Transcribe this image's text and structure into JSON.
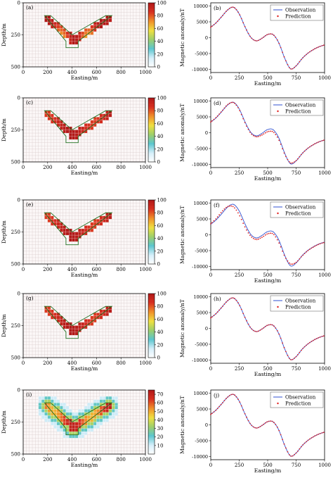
{
  "figure": {
    "rows": [
      {
        "left": {
          "label": "(a)",
          "xlabel": "Easting/m",
          "ylabel": "Depth/m",
          "xticks": [
            "0",
            "200",
            "400",
            "600",
            "800",
            "1000"
          ],
          "yticks": [
            "0",
            "250",
            "500"
          ],
          "colorbar_ticks": [
            "0",
            "20",
            "40",
            "60",
            "80",
            "100"
          ],
          "cmax": 100
        },
        "right": {
          "label": "(b)",
          "xlabel": "Easting/m",
          "ylabel": "Magnetic anomaly/nT",
          "xticks": [
            "0",
            "250",
            "500",
            "750",
            "1000"
          ],
          "yticks": [
            "-10000",
            "-5000",
            "0",
            "5000",
            "10000"
          ],
          "legend": [
            "Observation",
            "Prediction"
          ]
        }
      },
      {
        "left": {
          "label": "(c)",
          "xlabel": "Easting/m",
          "ylabel": "Depth/m",
          "xticks": [
            "0",
            "200",
            "400",
            "600",
            "800",
            "1000"
          ],
          "yticks": [
            "0",
            "250",
            "500"
          ],
          "colorbar_ticks": [
            "0",
            "20",
            "40",
            "60",
            "80",
            "100"
          ],
          "cmax": 100
        },
        "right": {
          "label": "(d)",
          "xlabel": "Easting/m",
          "ylabel": "Magnetic anomaly/nT",
          "xticks": [
            "0",
            "250",
            "500",
            "750",
            "1000"
          ],
          "yticks": [
            "-10000",
            "-5000",
            "0",
            "5000",
            "10000"
          ],
          "legend": [
            "Observation",
            "Prediction"
          ]
        }
      },
      {
        "left": {
          "label": "(e)",
          "xlabel": "Easting/m",
          "ylabel": "Depth/m",
          "xticks": [
            "0",
            "200",
            "400",
            "600",
            "800",
            "1000"
          ],
          "yticks": [
            "0",
            "250",
            "500"
          ],
          "colorbar_ticks": [
            "0",
            "20",
            "40",
            "60",
            "80",
            "100"
          ],
          "cmax": 100
        },
        "right": {
          "label": "(f)",
          "xlabel": "Easting/m",
          "ylabel": "Magnetic anomaly/nT",
          "xticks": [
            "0",
            "250",
            "500",
            "750",
            "1000"
          ],
          "yticks": [
            "-10000",
            "-5000",
            "0",
            "5000",
            "10000"
          ],
          "legend": [
            "Observation",
            "Prediction"
          ]
        }
      },
      {
        "left": {
          "label": "(g)",
          "xlabel": "Easting/m",
          "ylabel": "Depth/m",
          "xticks": [
            "0",
            "200",
            "400",
            "600",
            "800",
            "1000"
          ],
          "yticks": [
            "0",
            "250",
            "500"
          ],
          "colorbar_ticks": [
            "0",
            "20",
            "40",
            "60",
            "80",
            "100"
          ],
          "cmax": 100
        },
        "right": {
          "label": "(h)",
          "xlabel": "Easting/m",
          "ylabel": "Magnetic anomaly/nT",
          "xticks": [
            "0",
            "250",
            "500",
            "750",
            "1000"
          ],
          "yticks": [
            "-10000",
            "-5000",
            "0",
            "5000",
            "10000"
          ],
          "legend": [
            "Observation",
            "Prediction"
          ]
        }
      },
      {
        "left": {
          "label": "(i)",
          "xlabel": "Easting/m",
          "ylabel": "Depth/m",
          "xticks": [
            "0",
            "200",
            "400",
            "600",
            "800",
            "1000"
          ],
          "yticks": [
            "0",
            "250",
            "500"
          ],
          "colorbar_ticks": [
            "10",
            "20",
            "30",
            "40",
            "50",
            "60",
            "70"
          ],
          "cmax": 75
        },
        "right": {
          "label": "(j)",
          "xlabel": "Easting/m",
          "ylabel": "Magnetic anomaly/nT",
          "xticks": [
            "0",
            "250",
            "500",
            "750",
            "1000"
          ],
          "yticks": [
            "-10000",
            "-5000",
            "0",
            "5000",
            "10000"
          ],
          "legend": [
            "Observation",
            "Prediction"
          ]
        }
      }
    ]
  },
  "chart_data": [
    {
      "type": "heatmap",
      "panel": "(a)",
      "xlabel": "Easting/m",
      "ylabel": "Depth/m",
      "xlim": [
        0,
        1000
      ],
      "ylim": [
        500,
        0
      ],
      "clim": [
        0,
        100
      ],
      "cell_size": 25,
      "true_model": "V-shaped dipping dyke: left limb from (175,100) to (400,275), right limb from (700,100) to (400,275), tail block near (400,350)",
      "recovered_model": "V-shaped band of high susceptibility (≈80-100) following the true model; lower values near the apex"
    },
    {
      "type": "line",
      "panel": "(b)",
      "xlabel": "Easting/m",
      "ylabel": "Magnetic anomaly/nT",
      "xlim": [
        0,
        1000
      ],
      "ylim": [
        -11000,
        11000
      ],
      "x": [
        0,
        50,
        100,
        150,
        200,
        250,
        300,
        350,
        400,
        450,
        500,
        550,
        600,
        650,
        700,
        750,
        800,
        850,
        900,
        950,
        1000
      ],
      "series": [
        {
          "name": "Observation",
          "values": [
            3300,
            4800,
            6800,
            8800,
            9600,
            7500,
            3500,
            200,
            -1000,
            -200,
            1000,
            900,
            -1800,
            -6500,
            -9800,
            -8900,
            -6700,
            -5000,
            -3800,
            -2900,
            -2300
          ]
        },
        {
          "name": "Prediction",
          "values": [
            3300,
            4800,
            6800,
            8800,
            9600,
            7500,
            3500,
            200,
            -1000,
            -200,
            1000,
            900,
            -1800,
            -6500,
            -9800,
            -8900,
            -6700,
            -5000,
            -3800,
            -2900,
            -2300
          ]
        }
      ]
    },
    {
      "type": "heatmap",
      "panel": "(c)",
      "xlabel": "Easting/m",
      "ylabel": "Depth/m",
      "xlim": [
        0,
        1000
      ],
      "ylim": [
        500,
        0
      ],
      "clim": [
        0,
        100
      ]
    },
    {
      "type": "line",
      "panel": "(d)",
      "xlabel": "Easting/m",
      "ylabel": "Magnetic anomaly/nT",
      "xlim": [
        0,
        1000
      ],
      "ylim": [
        -11000,
        11000
      ],
      "x": [
        0,
        50,
        100,
        150,
        200,
        250,
        300,
        350,
        400,
        450,
        500,
        550,
        600,
        650,
        700,
        750,
        800,
        850,
        900,
        950,
        1000
      ],
      "series": [
        {
          "name": "Observation",
          "values": [
            3300,
            4800,
            6800,
            8800,
            9600,
            7500,
            3500,
            200,
            -1000,
            -200,
            1000,
            900,
            -1800,
            -6500,
            -9800,
            -8900,
            -6700,
            -5000,
            -3800,
            -2900,
            -2300
          ]
        },
        {
          "name": "Prediction",
          "values": [
            3400,
            4900,
            6900,
            8900,
            9500,
            7300,
            3200,
            -100,
            -1300,
            -700,
            300,
            200,
            -2400,
            -6800,
            -9500,
            -8800,
            -6700,
            -5000,
            -3800,
            -2900,
            -2300
          ]
        }
      ]
    },
    {
      "type": "heatmap",
      "panel": "(e)",
      "xlabel": "Easting/m",
      "ylabel": "Depth/m",
      "xlim": [
        0,
        1000
      ],
      "ylim": [
        500,
        0
      ],
      "clim": [
        0,
        100
      ]
    },
    {
      "type": "line",
      "panel": "(f)",
      "xlabel": "Easting/m",
      "ylabel": "Magnetic anomaly/nT",
      "xlim": [
        0,
        1000
      ],
      "ylim": [
        -11000,
        11000
      ],
      "x": [
        0,
        50,
        100,
        150,
        200,
        250,
        300,
        350,
        400,
        450,
        500,
        550,
        600,
        650,
        700,
        750,
        800,
        850,
        900,
        950,
        1000
      ],
      "series": [
        {
          "name": "Observation",
          "values": [
            3300,
            4800,
            6800,
            8800,
            9600,
            7500,
            3500,
            200,
            -1000,
            -200,
            1000,
            900,
            -1800,
            -6500,
            -9800,
            -8900,
            -6700,
            -5000,
            -3800,
            -2900,
            -2300
          ]
        },
        {
          "name": "Prediction",
          "values": [
            3500,
            5200,
            7400,
            8900,
            8800,
            6300,
            2500,
            -400,
            -1500,
            -800,
            300,
            200,
            -2600,
            -6800,
            -9200,
            -8700,
            -6800,
            -5100,
            -3900,
            -3000,
            -2400
          ]
        }
      ]
    },
    {
      "type": "heatmap",
      "panel": "(g)",
      "xlabel": "Easting/m",
      "ylabel": "Depth/m",
      "xlim": [
        0,
        1000
      ],
      "ylim": [
        500,
        0
      ],
      "clim": [
        0,
        100
      ]
    },
    {
      "type": "line",
      "panel": "(h)",
      "xlabel": "Easting/m",
      "ylabel": "Magnetic anomaly/nT",
      "xlim": [
        0,
        1000
      ],
      "ylim": [
        -11000,
        11000
      ],
      "x": [
        0,
        50,
        100,
        150,
        200,
        250,
        300,
        350,
        400,
        450,
        500,
        550,
        600,
        650,
        700,
        750,
        800,
        850,
        900,
        950,
        1000
      ],
      "series": [
        {
          "name": "Observation",
          "values": [
            3300,
            4800,
            6800,
            8800,
            9600,
            7500,
            3500,
            200,
            -1000,
            -200,
            1000,
            900,
            -1800,
            -6500,
            -9800,
            -8900,
            -6700,
            -5000,
            -3800,
            -2900,
            -2300
          ]
        },
        {
          "name": "Prediction",
          "values": [
            3300,
            4800,
            6800,
            8800,
            9600,
            7500,
            3500,
            200,
            -1000,
            -200,
            1000,
            900,
            -1800,
            -6500,
            -9800,
            -8900,
            -6700,
            -5000,
            -3800,
            -2900,
            -2300
          ]
        }
      ]
    },
    {
      "type": "heatmap",
      "panel": "(i)",
      "xlabel": "Easting/m",
      "ylabel": "Depth/m",
      "xlim": [
        0,
        1000
      ],
      "ylim": [
        500,
        0
      ],
      "clim": [
        0,
        75
      ]
    },
    {
      "type": "line",
      "panel": "(j)",
      "xlabel": "Easting/m",
      "ylabel": "Magnetic anomaly/nT",
      "xlim": [
        0,
        1000
      ],
      "ylim": [
        -11000,
        11000
      ],
      "x": [
        0,
        50,
        100,
        150,
        200,
        250,
        300,
        350,
        400,
        450,
        500,
        550,
        600,
        650,
        700,
        750,
        800,
        850,
        900,
        950,
        1000
      ],
      "series": [
        {
          "name": "Observation",
          "values": [
            3300,
            4800,
            6800,
            8800,
            9600,
            7500,
            3500,
            200,
            -1000,
            -200,
            1000,
            900,
            -1800,
            -6500,
            -9800,
            -8900,
            -6700,
            -5000,
            -3800,
            -2900,
            -2300
          ]
        },
        {
          "name": "Prediction",
          "values": [
            3300,
            4800,
            6800,
            8800,
            9600,
            7500,
            3500,
            200,
            -1000,
            -200,
            1000,
            900,
            -1800,
            -6500,
            -9800,
            -8900,
            -6700,
            -5000,
            -3800,
            -2900,
            -2300
          ]
        }
      ]
    }
  ],
  "colors": {
    "observation_line": "#3050d0",
    "prediction_marker": "#e02020",
    "true_model_outline": "#1f6f1f",
    "grid": "#d6c9c9",
    "colormap": [
      "#ffffff",
      "#d5eefa",
      "#5cc6cf",
      "#9dcf6b",
      "#f0e040",
      "#f0902a",
      "#d83020",
      "#b01818"
    ]
  }
}
